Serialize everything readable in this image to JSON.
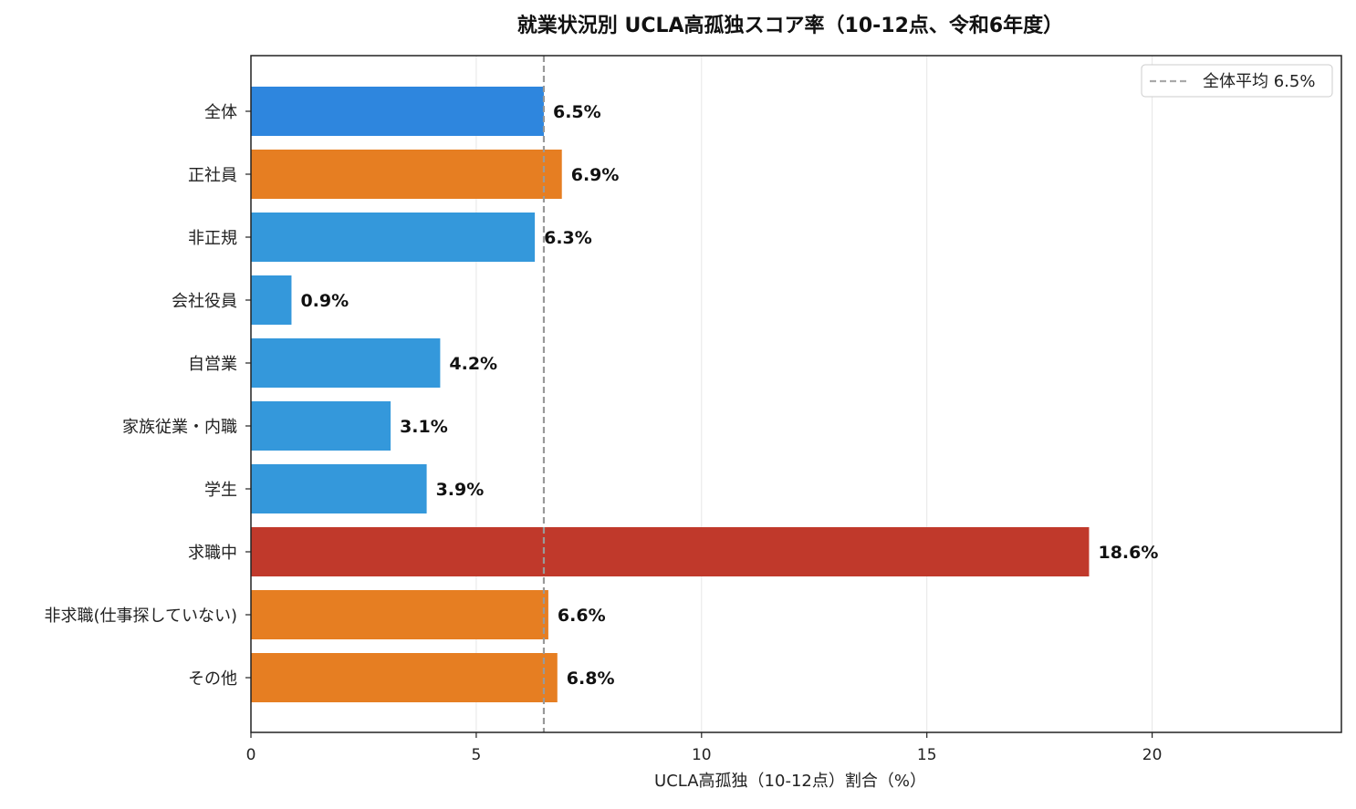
{
  "chart_data": {
    "type": "bar",
    "orientation": "horizontal",
    "title": "就業状況別 UCLA高孤独スコア率（10-12点、令和6年度）",
    "xlabel": "UCLA高孤独（10-12点）割合（%）",
    "ylabel": "",
    "xlim": [
      0,
      24.2
    ],
    "xticks": [
      0,
      5,
      10,
      15,
      20
    ],
    "grid": "x",
    "categories": [
      "全体",
      "正社員",
      "非正規",
      "会社役員",
      "自営業",
      "家族従業・内職",
      "学生",
      "求職中",
      "非求職(仕事探していない)",
      "その他"
    ],
    "values": [
      6.5,
      6.9,
      6.3,
      0.9,
      4.2,
      3.1,
      3.9,
      18.6,
      6.6,
      6.8
    ],
    "data_labels": [
      "6.5%",
      "6.9%",
      "6.3%",
      "0.9%",
      "4.2%",
      "3.1%",
      "3.9%",
      "18.6%",
      "6.6%",
      "6.8%"
    ],
    "bar_colors": [
      "#2e86de",
      "#e67e22",
      "#3498db",
      "#3498db",
      "#3498db",
      "#3498db",
      "#3498db",
      "#c0392b",
      "#e67e22",
      "#e67e22"
    ],
    "reference_line": {
      "value": 6.5,
      "label": "全体平均 6.5%",
      "color": "#999999",
      "style": "dashed"
    },
    "legend_placement": "top-right"
  }
}
